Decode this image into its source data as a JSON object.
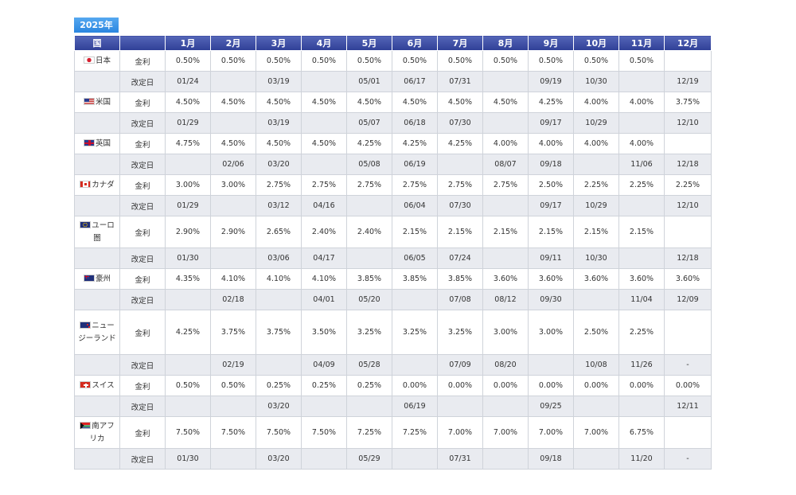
{
  "year_label": "2025年",
  "headers": [
    "国",
    "",
    "1月",
    "2月",
    "3月",
    "4月",
    "5月",
    "6月",
    "7月",
    "8月",
    "9月",
    "10月",
    "11月",
    "12月"
  ],
  "countries": [
    {
      "name": "日本",
      "flag": "jp-flag-icon",
      "rate_label": "金利",
      "date_label": "改定日",
      "rates": [
        "0.50%",
        "0.50%",
        "0.50%",
        "0.50%",
        "0.50%",
        "0.50%",
        "0.50%",
        "0.50%",
        "0.50%",
        "0.50%",
        "0.50%",
        ""
      ],
      "dates": [
        "01/24",
        "",
        "03/19",
        "",
        "05/01",
        "06/17",
        "07/31",
        "",
        "09/19",
        "10/30",
        "",
        "12/19"
      ]
    },
    {
      "name": "米国",
      "flag": "us-flag-icon",
      "rate_label": "金利",
      "date_label": "改定日",
      "rates": [
        "4.50%",
        "4.50%",
        "4.50%",
        "4.50%",
        "4.50%",
        "4.50%",
        "4.50%",
        "4.50%",
        "4.25%",
        "4.00%",
        "4.00%",
        "3.75%"
      ],
      "dates": [
        "01/29",
        "",
        "03/19",
        "",
        "05/07",
        "06/18",
        "07/30",
        "",
        "09/17",
        "10/29",
        "",
        "12/10"
      ]
    },
    {
      "name": "英国",
      "flag": "uk-flag-icon",
      "rate_label": "金利",
      "date_label": "改定日",
      "rates": [
        "4.75%",
        "4.50%",
        "4.50%",
        "4.50%",
        "4.25%",
        "4.25%",
        "4.25%",
        "4.00%",
        "4.00%",
        "4.00%",
        "4.00%",
        ""
      ],
      "dates": [
        "",
        "02/06",
        "03/20",
        "",
        "05/08",
        "06/19",
        "",
        "08/07",
        "09/18",
        "",
        "11/06",
        "12/18"
      ]
    },
    {
      "name": "カナダ",
      "flag": "ca-flag-icon",
      "rate_label": "金利",
      "date_label": "改定日",
      "rates": [
        "3.00%",
        "3.00%",
        "2.75%",
        "2.75%",
        "2.75%",
        "2.75%",
        "2.75%",
        "2.75%",
        "2.50%",
        "2.25%",
        "2.25%",
        "2.25%"
      ],
      "dates": [
        "01/29",
        "",
        "03/12",
        "04/16",
        "",
        "06/04",
        "07/30",
        "",
        "09/17",
        "10/29",
        "",
        "12/10"
      ]
    },
    {
      "name": "ユーロ圏",
      "flag": "eu-flag-icon",
      "rate_label": "金利",
      "date_label": "改定日",
      "rates": [
        "2.90%",
        "2.90%",
        "2.65%",
        "2.40%",
        "2.40%",
        "2.15%",
        "2.15%",
        "2.15%",
        "2.15%",
        "2.15%",
        "2.15%",
        ""
      ],
      "dates": [
        "01/30",
        "",
        "03/06",
        "04/17",
        "",
        "06/05",
        "07/24",
        "",
        "09/11",
        "10/30",
        "",
        "12/18"
      ]
    },
    {
      "name": "豪州",
      "flag": "au-flag-icon",
      "rate_label": "金利",
      "date_label": "改定日",
      "rates": [
        "4.35%",
        "4.10%",
        "4.10%",
        "4.10%",
        "3.85%",
        "3.85%",
        "3.85%",
        "3.60%",
        "3.60%",
        "3.60%",
        "3.60%",
        "3.60%"
      ],
      "dates": [
        "",
        "02/18",
        "",
        "04/01",
        "05/20",
        "",
        "07/08",
        "08/12",
        "09/30",
        "",
        "11/04",
        "12/09"
      ]
    },
    {
      "name": "ニュージーランド",
      "flag": "nz-flag-icon",
      "rate_label": "金利",
      "date_label": "改定日",
      "rates": [
        "4.25%",
        "3.75%",
        "3.75%",
        "3.50%",
        "3.25%",
        "3.25%",
        "3.25%",
        "3.00%",
        "3.00%",
        "2.50%",
        "2.25%",
        ""
      ],
      "dates": [
        "",
        "02/19",
        "",
        "04/09",
        "05/28",
        "",
        "07/09",
        "08/20",
        "",
        "10/08",
        "11/26",
        "-"
      ]
    },
    {
      "name": "スイス",
      "flag": "ch-flag-icon",
      "rate_label": "金利",
      "date_label": "改定日",
      "rates": [
        "0.50%",
        "0.50%",
        "0.25%",
        "0.25%",
        "0.25%",
        "0.00%",
        "0.00%",
        "0.00%",
        "0.00%",
        "0.00%",
        "0.00%",
        "0.00%"
      ],
      "dates": [
        "",
        "",
        "03/20",
        "",
        "",
        "06/19",
        "",
        "",
        "09/25",
        "",
        "",
        "12/11"
      ]
    },
    {
      "name": "南アフリカ",
      "flag": "za-flag-icon",
      "rate_label": "金利",
      "date_label": "改定日",
      "rates": [
        "7.50%",
        "7.50%",
        "7.50%",
        "7.50%",
        "7.25%",
        "7.25%",
        "7.00%",
        "7.00%",
        "7.00%",
        "7.00%",
        "6.75%",
        ""
      ],
      "dates": [
        "01/30",
        "",
        "03/20",
        "",
        "05/29",
        "",
        "07/31",
        "",
        "09/18",
        "",
        "11/20",
        "-"
      ]
    }
  ]
}
